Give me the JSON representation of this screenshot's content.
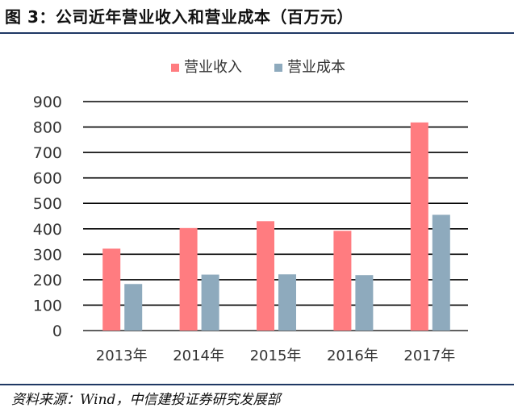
{
  "figure": {
    "title": "图 3：公司近年营业收入和营业成本（百万元）",
    "source": "资料来源：Wind，中信建投证券研究发展部"
  },
  "colors": {
    "revenue": "#ff7c80",
    "cost": "#8eaabd",
    "rule": "#1f3864",
    "gridline": "#000000",
    "text": "#333333"
  },
  "chart_data": {
    "type": "bar",
    "title": "",
    "xlabel": "",
    "ylabel": "",
    "categories": [
      "2013年",
      "2014年",
      "2015年",
      "2016年",
      "2017年"
    ],
    "series": [
      {
        "name": "营业收入",
        "color": "#ff7c80",
        "values": [
          322,
          403,
          430,
          392,
          818
        ]
      },
      {
        "name": "营业成本",
        "color": "#8eaabd",
        "values": [
          183,
          220,
          221,
          218,
          455
        ]
      }
    ],
    "ylim": [
      0,
      900
    ],
    "yticks": [
      0,
      100,
      200,
      300,
      400,
      500,
      600,
      700,
      800,
      900
    ],
    "grid": true,
    "legend": "top"
  }
}
